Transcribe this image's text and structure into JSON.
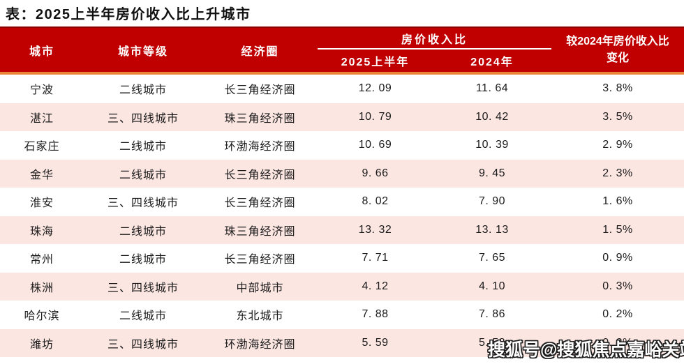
{
  "page_title": "表：2025上半年房价收入比上升城市",
  "chart_data": {
    "type": "table",
    "title": "表：2025上半年房价收入比上升城市",
    "columns": [
      "城市",
      "城市等级",
      "经济圈",
      "2025上半年",
      "2024年",
      "较2024年房价收入比变化"
    ],
    "column_group": {
      "label": "房价收入比",
      "spans": [
        "2025上半年",
        "2024年"
      ]
    },
    "rows": [
      {
        "city": "宁波",
        "tier": "二线城市",
        "circle": "长三角经济圈",
        "h1_2025": "12.09",
        "y2024": "11.64",
        "change": "3.8%"
      },
      {
        "city": "湛江",
        "tier": "三、四线城市",
        "circle": "珠三角经济圈",
        "h1_2025": "10.79",
        "y2024": "10.42",
        "change": "3.5%"
      },
      {
        "city": "石家庄",
        "tier": "二线城市",
        "circle": "环渤海经济圈",
        "h1_2025": "10.69",
        "y2024": "10.39",
        "change": "2.9%"
      },
      {
        "city": "金华",
        "tier": "二线城市",
        "circle": "长三角经济圈",
        "h1_2025": "9.66",
        "y2024": "9.45",
        "change": "2.3%"
      },
      {
        "city": "淮安",
        "tier": "三、四线城市",
        "circle": "长三角经济圈",
        "h1_2025": "8.02",
        "y2024": "7.90",
        "change": "1.6%"
      },
      {
        "city": "珠海",
        "tier": "二线城市",
        "circle": "珠三角经济圈",
        "h1_2025": "13.32",
        "y2024": "13.13",
        "change": "1.5%"
      },
      {
        "city": "常州",
        "tier": "二线城市",
        "circle": "长三角经济圈",
        "h1_2025": "7.71",
        "y2024": "7.65",
        "change": "0.9%"
      },
      {
        "city": "株洲",
        "tier": "三、四线城市",
        "circle": "中部城市",
        "h1_2025": "4.12",
        "y2024": "4.10",
        "change": "0.3%"
      },
      {
        "city": "哈尔滨",
        "tier": "二线城市",
        "circle": "东北城市",
        "h1_2025": "7.88",
        "y2024": "7.86",
        "change": "0.2%"
      },
      {
        "city": "潍坊",
        "tier": "三、四线城市",
        "circle": "环渤海经济圈",
        "h1_2025": "5.59",
        "y2024": "5.58",
        "change": "0.2%"
      }
    ]
  },
  "watermark": "搜狐号@搜狐焦点嘉峪关站",
  "colors": {
    "header_bg": "#c00000",
    "header_top_edge": "#8f0000",
    "accent_orange": "#e8873c",
    "row_alt_bg": "#fce6e2",
    "header_text": "#ffffff",
    "body_text": "#1a1a1a",
    "title_text": "#111111"
  }
}
